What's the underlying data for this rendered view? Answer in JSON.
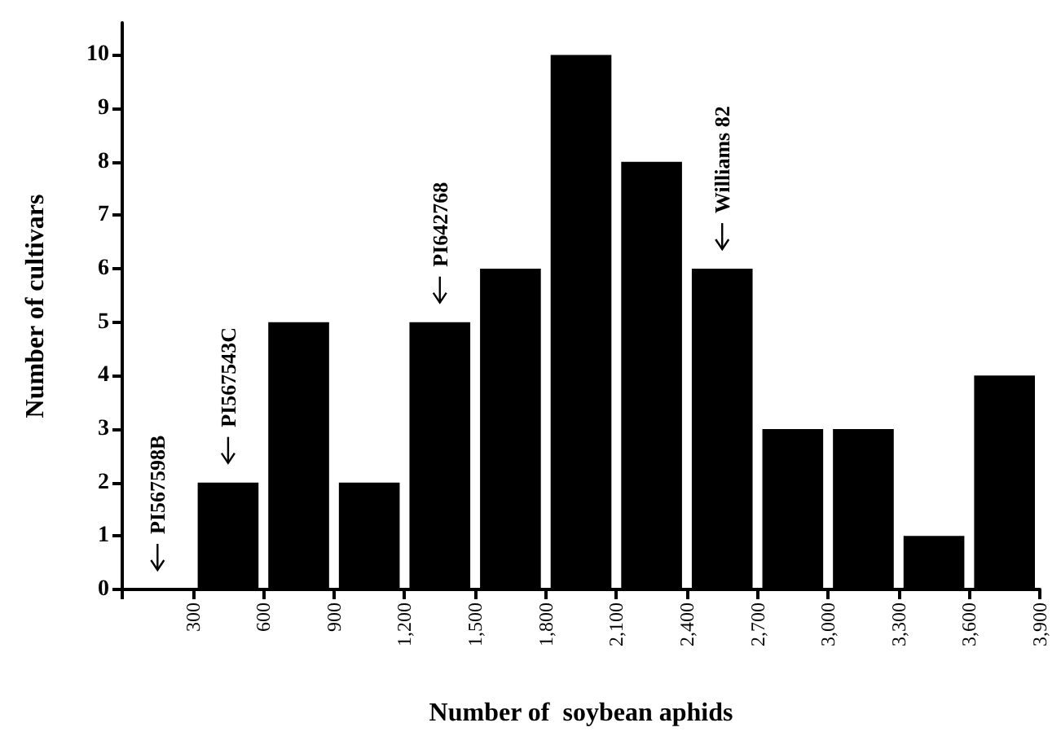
{
  "chart_data": {
    "type": "histogram",
    "xlabel": "Number of  soybean aphids",
    "ylabel": "Number of cultivars",
    "bins": [
      0,
      300,
      600,
      900,
      1200,
      1500,
      1800,
      2100,
      2400,
      2700,
      3000,
      3300,
      3600,
      3900
    ],
    "values": [
      0,
      2,
      5,
      2,
      5,
      6,
      10,
      8,
      6,
      3,
      3,
      1,
      4
    ],
    "color": "#000000",
    "xlim": [
      0,
      3900
    ],
    "xticks": [
      {
        "value": 0,
        "label": null
      },
      300,
      600,
      900,
      {
        "value": 1200,
        "label": "1,200"
      },
      {
        "value": 1500,
        "label": "1,500"
      },
      {
        "value": 1800,
        "label": "1,800"
      },
      {
        "value": 2100,
        "label": "2,100"
      },
      {
        "value": 2400,
        "label": "2,400"
      },
      {
        "value": 2700,
        "label": "2,700"
      },
      {
        "value": 3000,
        "label": "3,000"
      },
      {
        "value": 3300,
        "label": "3,300"
      },
      {
        "value": 3600,
        "label": "3,600"
      },
      {
        "value": 3900,
        "label": "3,900"
      }
    ],
    "ylim": [
      0,
      10.6
    ],
    "yticks": [
      0,
      1,
      2,
      3,
      4,
      5,
      6,
      7,
      8,
      9,
      10
    ],
    "grid": false,
    "annotations": [
      {
        "text": "PI567598B",
        "x": 150,
        "y": 0
      },
      {
        "text": "PI567543C",
        "x": 450,
        "y": 2
      },
      {
        "text": "PI642768",
        "x": 1350,
        "y": 5
      },
      {
        "text": "Williams 82",
        "x": 2550,
        "y": 6
      }
    ]
  }
}
